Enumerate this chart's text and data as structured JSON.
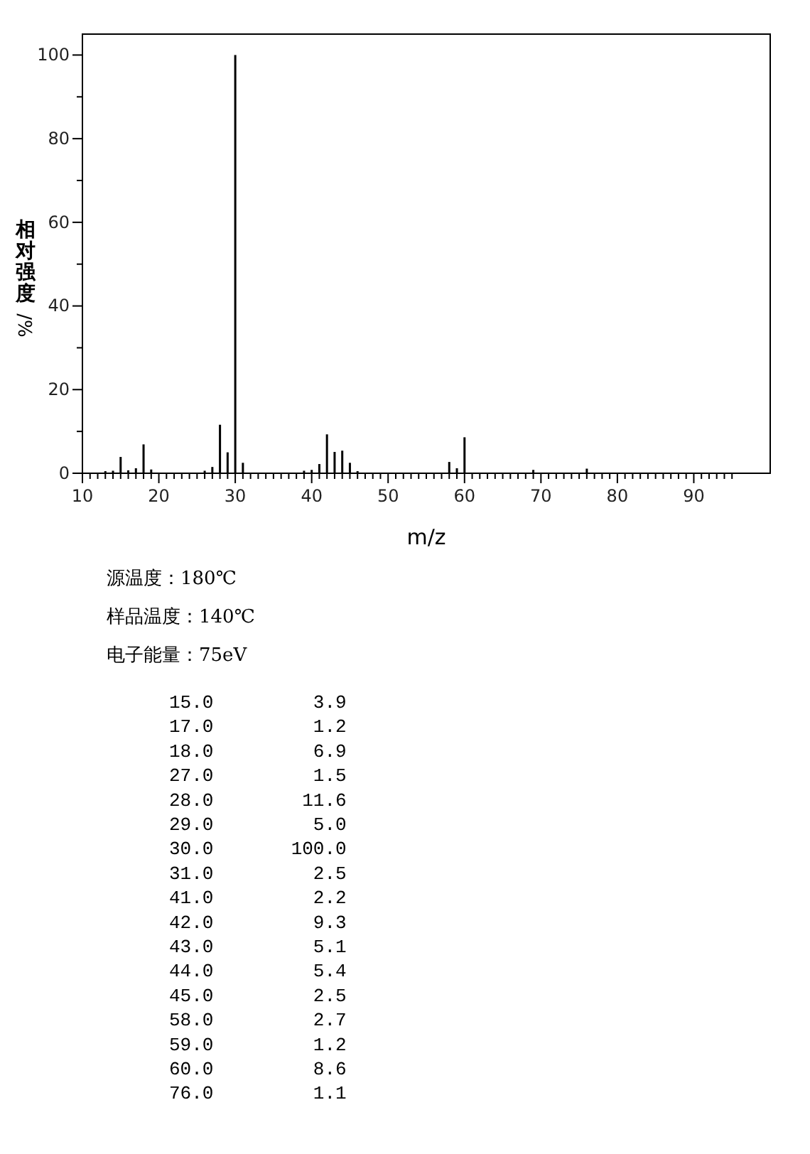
{
  "chart_data": {
    "type": "bar",
    "xlabel": "m/z",
    "ylabel": "相对强度/%",
    "x": [
      13,
      14,
      15,
      16,
      17,
      18,
      19,
      26,
      27,
      28,
      29,
      30,
      31,
      39,
      40,
      41,
      42,
      43,
      44,
      45,
      46,
      58,
      59,
      60,
      69,
      76
    ],
    "values": [
      0.5,
      0.6,
      3.9,
      0.7,
      1.2,
      6.9,
      0.9,
      0.6,
      1.5,
      11.6,
      5.0,
      100.0,
      2.5,
      0.6,
      0.8,
      2.2,
      9.3,
      5.1,
      5.4,
      2.5,
      0.5,
      2.7,
      1.2,
      8.6,
      0.8,
      1.1
    ],
    "color": "#000000",
    "xlim": [
      10,
      100
    ],
    "xticks": [
      10,
      {
        "value": 11,
        "label": null
      },
      {
        "value": 12,
        "label": null
      },
      {
        "value": 13,
        "label": null
      },
      {
        "value": 14,
        "label": null
      },
      {
        "value": 15,
        "label": null
      },
      {
        "value": 16,
        "label": null
      },
      {
        "value": 17,
        "label": null
      },
      {
        "value": 18,
        "label": null
      },
      {
        "value": 19,
        "label": null
      },
      20,
      {
        "value": 21,
        "label": null
      },
      {
        "value": 22,
        "label": null
      },
      {
        "value": 23,
        "label": null
      },
      {
        "value": 24,
        "label": null
      },
      {
        "value": 25,
        "label": null
      },
      {
        "value": 26,
        "label": null
      },
      {
        "value": 27,
        "label": null
      },
      {
        "value": 28,
        "label": null
      },
      {
        "value": 29,
        "label": null
      },
      30,
      {
        "value": 31,
        "label": null
      },
      {
        "value": 32,
        "label": null
      },
      {
        "value": 33,
        "label": null
      },
      {
        "value": 34,
        "label": null
      },
      {
        "value": 35,
        "label": null
      },
      {
        "value": 36,
        "label": null
      },
      {
        "value": 37,
        "label": null
      },
      {
        "value": 38,
        "label": null
      },
      {
        "value": 39,
        "label": null
      },
      40,
      {
        "value": 41,
        "label": null
      },
      {
        "value": 42,
        "label": null
      },
      {
        "value": 43,
        "label": null
      },
      {
        "value": 44,
        "label": null
      },
      {
        "value": 45,
        "label": null
      },
      {
        "value": 46,
        "label": null
      },
      {
        "value": 47,
        "label": null
      },
      {
        "value": 48,
        "label": null
      },
      {
        "value": 49,
        "label": null
      },
      50,
      {
        "value": 51,
        "label": null
      },
      {
        "value": 52,
        "label": null
      },
      {
        "value": 53,
        "label": null
      },
      {
        "value": 54,
        "label": null
      },
      {
        "value": 55,
        "label": null
      },
      {
        "value": 56,
        "label": null
      },
      {
        "value": 57,
        "label": null
      },
      {
        "value": 58,
        "label": null
      },
      {
        "value": 59,
        "label": null
      },
      60,
      {
        "value": 61,
        "label": null
      },
      {
        "value": 62,
        "label": null
      },
      {
        "value": 63,
        "label": null
      },
      {
        "value": 64,
        "label": null
      },
      {
        "value": 65,
        "label": null
      },
      {
        "value": 66,
        "label": null
      },
      {
        "value": 67,
        "label": null
      },
      {
        "value": 68,
        "label": null
      },
      {
        "value": 69,
        "label": null
      },
      70,
      {
        "value": 71,
        "label": null
      },
      {
        "value": 72,
        "label": null
      },
      {
        "value": 73,
        "label": null
      },
      {
        "value": 74,
        "label": null
      },
      {
        "value": 75,
        "label": null
      },
      {
        "value": 76,
        "label": null
      },
      {
        "value": 77,
        "label": null
      },
      {
        "value": 78,
        "label": null
      },
      {
        "value": 79,
        "label": null
      },
      80,
      {
        "value": 81,
        "label": null
      },
      {
        "value": 82,
        "label": null
      },
      {
        "value": 83,
        "label": null
      },
      {
        "value": 84,
        "label": null
      },
      {
        "value": 85,
        "label": null
      },
      {
        "value": 86,
        "label": null
      },
      {
        "value": 87,
        "label": null
      },
      {
        "value": 88,
        "label": null
      },
      {
        "value": 89,
        "label": null
      },
      90,
      {
        "value": 91,
        "label": null
      },
      {
        "value": 92,
        "label": null
      },
      {
        "value": 93,
        "label": null
      },
      {
        "value": 94,
        "label": null
      },
      {
        "value": 95,
        "label": null
      }
    ],
    "ylim": [
      0,
      105
    ],
    "yticks": [
      0,
      {
        "value": 10,
        "label": null
      },
      20,
      {
        "value": 30,
        "label": null
      },
      40,
      {
        "value": 50,
        "label": null
      },
      60,
      {
        "value": 70,
        "label": null
      },
      80,
      {
        "value": 90,
        "label": null
      },
      100
    ],
    "annotations": [
      "源温度：180℃",
      "样品温度：140℃",
      "电子能量：75eV",
      "15.0         3.9",
      "17.0         1.2",
      "18.0         6.9",
      "27.0         1.5",
      "28.0        11.6",
      "29.0         5.0",
      "30.0       100.0",
      "31.0         2.5",
      "41.0         2.2",
      "42.0         9.3",
      "43.0         5.1",
      "44.0         5.4",
      "45.0         2.5",
      "58.0         2.7",
      "59.0         1.2",
      "60.0         8.6",
      "76.0         1.1"
    ]
  }
}
